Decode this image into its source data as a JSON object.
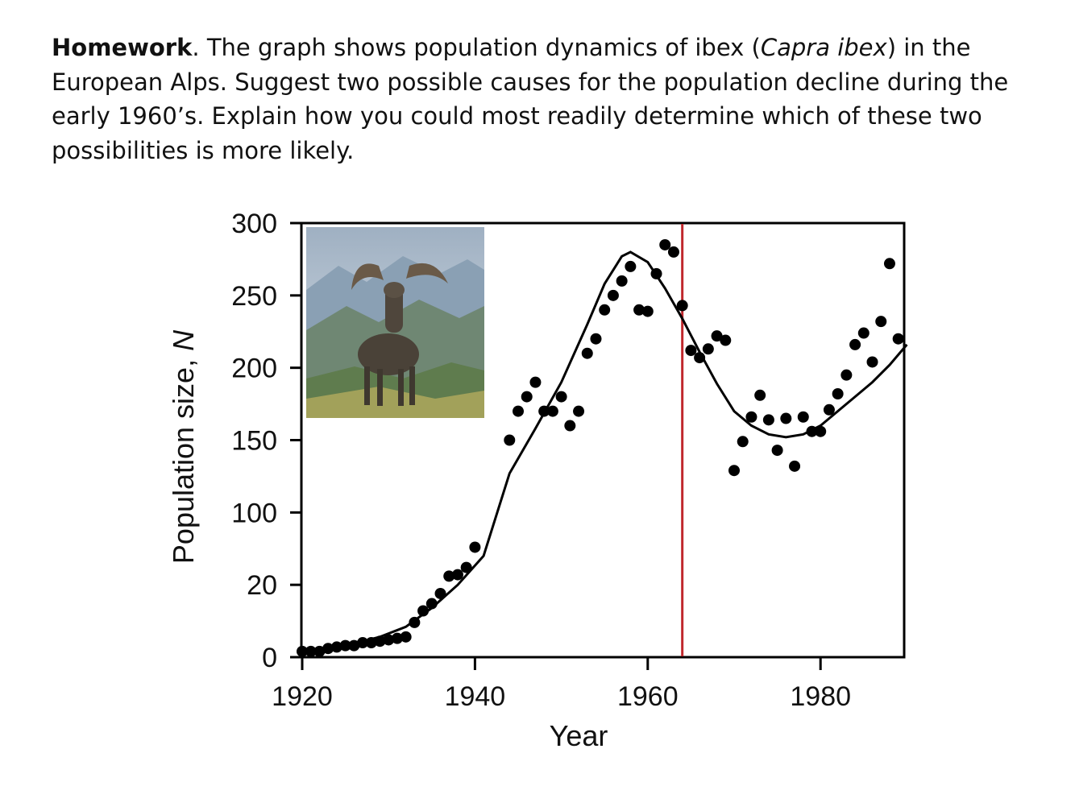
{
  "prompt": {
    "lead": "Homework",
    "part1": ". The graph shows population dynamics of ibex (",
    "species": "Capra ibex",
    "part2": ") in the European Alps. Suggest two possible causes for the population decline during the early 1960’s. Explain how you could most readily determine which of these two possibilities is more likely."
  },
  "chart_data": {
    "type": "scatter",
    "xlabel": "Year",
    "ylabel_main": "Population size, ",
    "ylabel_symbol": "N",
    "x_ticks": [
      1920,
      1940,
      1960,
      1980
    ],
    "y_tick_labels": [
      "0",
      "20",
      "100",
      "150",
      "200",
      "250",
      "300"
    ],
    "xlim": [
      1920,
      1990
    ],
    "marker_year": 1964,
    "colors": {
      "marker_line": "#c0282d",
      "points": "#000000",
      "curve": "#000000"
    },
    "inset_image": "ibex-photo",
    "points": [
      [
        1920,
        4
      ],
      [
        1921,
        4
      ],
      [
        1922,
        4
      ],
      [
        1923,
        6
      ],
      [
        1924,
        7
      ],
      [
        1925,
        8
      ],
      [
        1926,
        8
      ],
      [
        1927,
        10
      ],
      [
        1928,
        10
      ],
      [
        1929,
        11
      ],
      [
        1930,
        12
      ],
      [
        1931,
        13
      ],
      [
        1932,
        14
      ],
      [
        1933,
        24
      ],
      [
        1934,
        32
      ],
      [
        1935,
        37
      ],
      [
        1936,
        44
      ],
      [
        1937,
        56
      ],
      [
        1938,
        57
      ],
      [
        1939,
        62
      ],
      [
        1940,
        76
      ],
      [
        1944,
        150
      ],
      [
        1945,
        170
      ],
      [
        1946,
        180
      ],
      [
        1947,
        190
      ],
      [
        1948,
        170
      ],
      [
        1949,
        170
      ],
      [
        1950,
        180
      ],
      [
        1951,
        160
      ],
      [
        1952,
        170
      ],
      [
        1953,
        210
      ],
      [
        1954,
        220
      ],
      [
        1955,
        240
      ],
      [
        1956,
        250
      ],
      [
        1957,
        260
      ],
      [
        1958,
        270
      ],
      [
        1959,
        240
      ],
      [
        1960,
        239
      ],
      [
        1961,
        265
      ],
      [
        1962,
        285
      ],
      [
        1963,
        280
      ],
      [
        1964,
        243
      ],
      [
        1965,
        212
      ],
      [
        1966,
        207
      ],
      [
        1967,
        213
      ],
      [
        1968,
        222
      ],
      [
        1969,
        219
      ],
      [
        1970,
        129
      ],
      [
        1971,
        149
      ],
      [
        1972,
        166
      ],
      [
        1973,
        181
      ],
      [
        1974,
        164
      ],
      [
        1975,
        143
      ],
      [
        1976,
        165
      ],
      [
        1977,
        132
      ],
      [
        1978,
        166
      ],
      [
        1979,
        156
      ],
      [
        1980,
        156
      ],
      [
        1981,
        171
      ],
      [
        1982,
        182
      ],
      [
        1983,
        195
      ],
      [
        1984,
        216
      ],
      [
        1985,
        224
      ],
      [
        1986,
        204
      ],
      [
        1987,
        232
      ],
      [
        1988,
        272
      ],
      [
        1989,
        220
      ]
    ],
    "curve": [
      [
        1920,
        3
      ],
      [
        1925,
        8
      ],
      [
        1929,
        14
      ],
      [
        1932,
        21
      ],
      [
        1935,
        34
      ],
      [
        1938,
        50
      ],
      [
        1941,
        70
      ],
      [
        1944,
        127
      ],
      [
        1947,
        158
      ],
      [
        1950,
        190
      ],
      [
        1953,
        230
      ],
      [
        1955,
        258
      ],
      [
        1957,
        277
      ],
      [
        1958,
        280
      ],
      [
        1960,
        273
      ],
      [
        1962,
        255
      ],
      [
        1964,
        234
      ],
      [
        1966,
        211
      ],
      [
        1968,
        189
      ],
      [
        1970,
        170
      ],
      [
        1972,
        160
      ],
      [
        1974,
        154
      ],
      [
        1976,
        152
      ],
      [
        1978,
        154
      ],
      [
        1980,
        160
      ],
      [
        1982,
        170
      ],
      [
        1984,
        180
      ],
      [
        1986,
        190
      ],
      [
        1988,
        202
      ],
      [
        1990,
        216
      ]
    ]
  }
}
